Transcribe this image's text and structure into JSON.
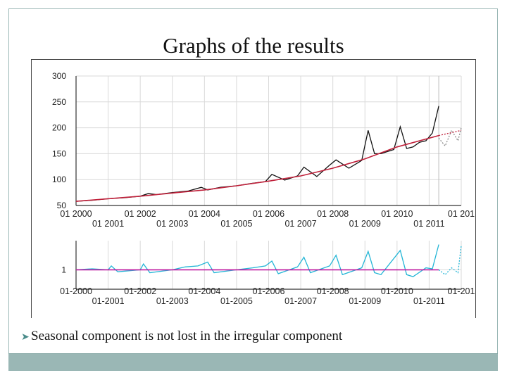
{
  "slide": {
    "title": "Graphs of the results",
    "caption": "Seasonal component is not lost in the irregular component",
    "bullet_icon": "bullet-arrow-icon",
    "colors": {
      "frame": "#9ab7b5",
      "footer": "#9ab7b5"
    }
  },
  "chart_data": [
    {
      "type": "line",
      "panel": "top",
      "ylim": [
        50,
        300
      ],
      "yticks": [
        "300",
        "250",
        "200",
        "150",
        "100",
        "50"
      ],
      "xlim": [
        2000,
        2012
      ],
      "xticks_row1": [
        "01 2000",
        "01 2002",
        "01 2004",
        "01 2006",
        "01 2008",
        "01 2010",
        "01 201"
      ],
      "xticks_row2": [
        "01 2001",
        "01 2003",
        "01 2005",
        "01 2007",
        "01 2009",
        "01 2011"
      ],
      "forecast_start": 2011.3,
      "series": [
        {
          "role": "original",
          "color": "#111111",
          "x": [
            2000,
            2000.5,
            2001,
            2001.5,
            2002,
            2002.25,
            2002.5,
            2003,
            2003.5,
            2003.9,
            2004.1,
            2004.5,
            2005,
            2005.5,
            2005.9,
            2006.1,
            2006.5,
            2006.9,
            2007.1,
            2007.5,
            2007.9,
            2008.1,
            2008.5,
            2008.9,
            2009.1,
            2009.3,
            2009.5,
            2009.9,
            2010.1,
            2010.3,
            2010.5,
            2010.7,
            2010.9,
            2011.1,
            2011.3
          ],
          "y": [
            58,
            60,
            63,
            65,
            68,
            73,
            71,
            75,
            78,
            85,
            80,
            85,
            88,
            93,
            96,
            110,
            99,
            107,
            124,
            106,
            128,
            138,
            122,
            137,
            195,
            150,
            150,
            158,
            202,
            160,
            163,
            172,
            175,
            190,
            242
          ]
        },
        {
          "role": "trend",
          "color": "#c0203a",
          "x": [
            2000,
            2001,
            2002,
            2003,
            2004,
            2005,
            2006,
            2007,
            2008,
            2009,
            2010,
            2011.3
          ],
          "y": [
            58,
            63,
            68,
            74,
            80,
            88,
            97,
            107,
            122,
            140,
            163,
            185
          ]
        },
        {
          "role": "forecast",
          "color": "#8a8a8a",
          "dashed": true,
          "x": [
            2011.3,
            2011.5,
            2011.7,
            2011.9,
            2012
          ],
          "y": [
            180,
            165,
            195,
            175,
            200
          ]
        },
        {
          "role": "forecast-trend",
          "color": "#c0203a",
          "dashed": true,
          "x": [
            2011.3,
            2012
          ],
          "y": [
            185,
            195
          ]
        }
      ]
    },
    {
      "type": "line",
      "panel": "bottom",
      "ylim": [
        0.8,
        1.3
      ],
      "yticks": [
        "1"
      ],
      "xlim": [
        2000,
        2012
      ],
      "xticks_row1": [
        "01-2000",
        "01-2002",
        "01-2004",
        "01-2006",
        "01-2008",
        "01-2010",
        "01-201"
      ],
      "xticks_row2": [
        "01-2001",
        "01-2003",
        "01-2005",
        "01-2007",
        "01-2009",
        "01-2011"
      ],
      "series": [
        {
          "role": "irregular",
          "color": "#22b5d6",
          "x": [
            2000,
            2000.5,
            2001,
            2001.1,
            2001.3,
            2002,
            2002.1,
            2002.3,
            2003,
            2003.4,
            2003.8,
            2004.1,
            2004.3,
            2005,
            2005.5,
            2005.9,
            2006.1,
            2006.3,
            2006.9,
            2007.1,
            2007.3,
            2007.9,
            2008.1,
            2008.3,
            2008.9,
            2009.1,
            2009.3,
            2009.5,
            2010.1,
            2010.3,
            2010.5,
            2010.9,
            2011.1,
            2011.3
          ],
          "y": [
            1.0,
            1.01,
            1.0,
            1.04,
            0.98,
            1.0,
            1.06,
            0.97,
            1.0,
            1.03,
            1.04,
            1.08,
            0.97,
            1.0,
            1.02,
            1.04,
            1.09,
            0.96,
            1.03,
            1.13,
            0.97,
            1.04,
            1.15,
            0.95,
            1.02,
            1.19,
            0.97,
            0.95,
            1.2,
            0.95,
            0.93,
            1.02,
            1.01,
            1.26
          ]
        },
        {
          "role": "seasonal-trend",
          "color": "#c01aa0",
          "x": [
            2000,
            2011.3
          ],
          "y": [
            1.0,
            1.0
          ]
        },
        {
          "role": "forecast",
          "color": "#22b5d6",
          "dashed": true,
          "x": [
            2011.3,
            2011.5,
            2011.7,
            2011.9,
            2012
          ],
          "y": [
            1.0,
            0.95,
            1.02,
            0.97,
            1.25
          ]
        }
      ]
    }
  ]
}
